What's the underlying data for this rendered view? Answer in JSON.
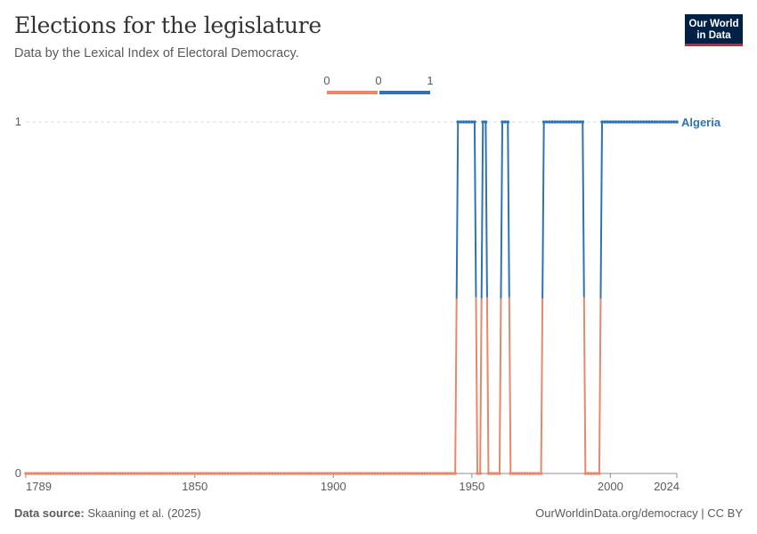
{
  "header": {
    "title": "Elections for the legislature",
    "subtitle": "Data by the Lexical Index of Electoral Democracy.",
    "logo_line1": "Our World",
    "logo_line2": "in Data"
  },
  "footer": {
    "source_label": "Data source:",
    "source_text": "Skaaning et al. (2025)",
    "url_license": "OurWorldinData.org/democracy | CC BY"
  },
  "colors": {
    "low": "#e8876a",
    "high": "#2d73b3",
    "grid": "#dddddd",
    "axis": "#8c8c8c"
  },
  "legend": {
    "labels": [
      "0",
      "0",
      "1"
    ]
  },
  "chart_data": {
    "type": "line",
    "title": "Elections for the legislature",
    "xlim": [
      1789,
      2024
    ],
    "ylim": [
      0,
      1
    ],
    "x_ticks": [
      1789,
      1850,
      1900,
      1950,
      2000,
      2024
    ],
    "y_ticks": [
      0,
      1
    ],
    "grid": "horizontal dashed",
    "legend_placement": "top-center",
    "series": [
      {
        "name": "Algeria",
        "segments": [
          {
            "start": 1789,
            "end": 1944,
            "value": 0
          },
          {
            "start": 1945,
            "end": 1951,
            "value": 1
          },
          {
            "start": 1952,
            "end": 1953,
            "value": 0
          },
          {
            "start": 1954,
            "end": 1955,
            "value": 1
          },
          {
            "start": 1956,
            "end": 1960,
            "value": 0
          },
          {
            "start": 1961,
            "end": 1963,
            "value": 1
          },
          {
            "start": 1964,
            "end": 1975,
            "value": 0
          },
          {
            "start": 1976,
            "end": 1990,
            "value": 1
          },
          {
            "start": 1991,
            "end": 1996,
            "value": 0
          },
          {
            "start": 1997,
            "end": 2024,
            "value": 1
          }
        ]
      }
    ]
  }
}
